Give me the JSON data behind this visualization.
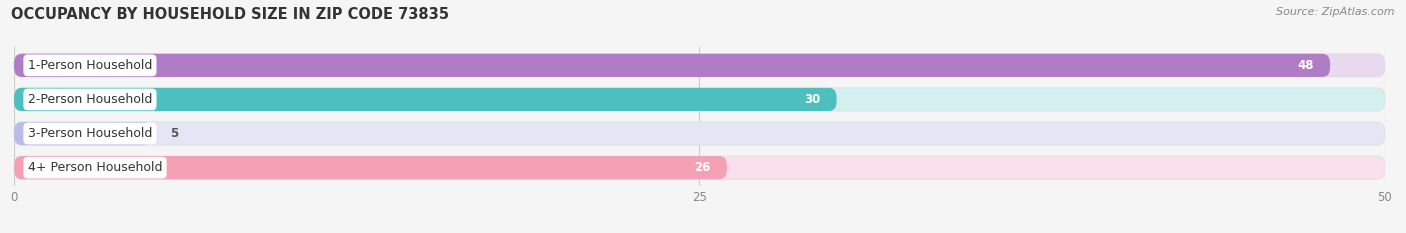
{
  "title": "OCCUPANCY BY HOUSEHOLD SIZE IN ZIP CODE 73835",
  "source": "Source: ZipAtlas.com",
  "categories": [
    "1-Person Household",
    "2-Person Household",
    "3-Person Household",
    "4+ Person Household"
  ],
  "values": [
    48,
    30,
    5,
    26
  ],
  "bar_colors": [
    "#b07cc6",
    "#4dbfbf",
    "#b8bce8",
    "#f4a0b5"
  ],
  "bar_bg_colors": [
    "#e8d8f0",
    "#d4efef",
    "#e4e6f5",
    "#fae0ea"
  ],
  "xlim": [
    0,
    50
  ],
  "xticks": [
    0,
    25,
    50
  ],
  "title_fontsize": 10.5,
  "source_fontsize": 8,
  "label_fontsize": 9,
  "value_fontsize": 8.5,
  "background_color": "#f5f5f5",
  "label_inside_threshold": 10
}
